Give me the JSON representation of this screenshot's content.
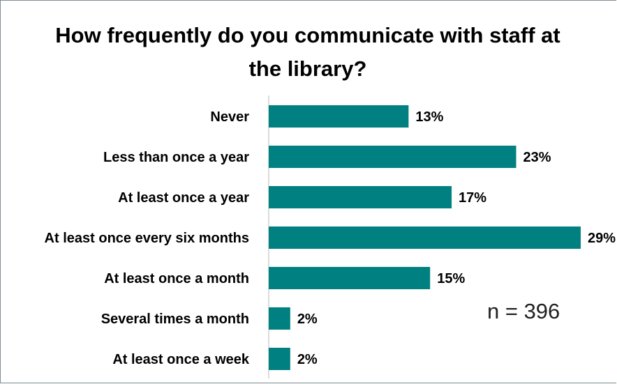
{
  "chart_data": {
    "type": "bar",
    "orientation": "horizontal",
    "title": "How frequently do you communicate with staff at the library?",
    "categories": [
      "Never",
      "Less than once a year",
      "At least once a year",
      "At least once every six months",
      "At least once a month",
      "Several times a month",
      "At least once a week"
    ],
    "values": [
      13,
      23,
      17,
      29,
      15,
      2,
      2
    ],
    "value_labels": [
      "13%",
      "23%",
      "17%",
      "29%",
      "15%",
      "2%",
      "2%"
    ],
    "unit": "%",
    "xlim": [
      0,
      29
    ],
    "grid": false,
    "legend": "none",
    "annotation": "n = 396",
    "bar_color": "#008080"
  }
}
